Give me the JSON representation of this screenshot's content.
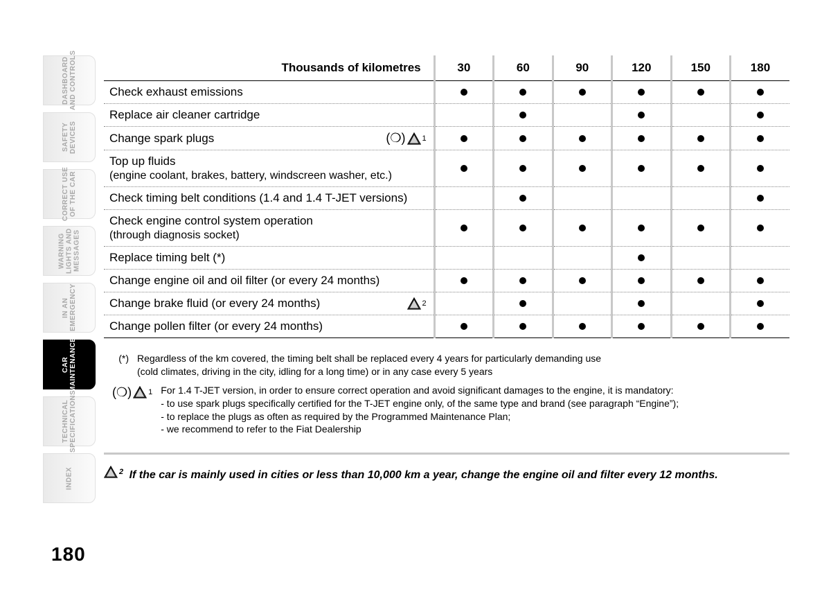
{
  "page_number": "180",
  "tabs": [
    {
      "label": "DASHBOARD\nAND CONTROLS",
      "active": false
    },
    {
      "label": "SAFETY\nDEVICES",
      "active": false
    },
    {
      "label": "CORRECT USE\nOF THE CAR",
      "active": false
    },
    {
      "label": "WARNING\nLIGHTS AND\nMESSAGES",
      "active": false
    },
    {
      "label": "IN AN\nEMERGENCY",
      "active": false
    },
    {
      "label": "CAR\nMAINTENANCE",
      "active": true
    },
    {
      "label": "TECHNICAL\nSPECIFICATIONS",
      "active": false
    },
    {
      "label": "INDEX",
      "active": false
    }
  ],
  "table": {
    "header_label": "Thousands of kilometres",
    "columns": [
      "30",
      "60",
      "90",
      "120",
      "150",
      "180"
    ],
    "rows": [
      {
        "desc": "Check exhaust emissions",
        "marks": [
          true,
          true,
          true,
          true,
          true,
          true
        ]
      },
      {
        "desc": "Replace air cleaner cartridge",
        "marks": [
          false,
          true,
          false,
          true,
          false,
          true
        ]
      },
      {
        "desc": "Change spark plugs",
        "annot": "ring_tri_1",
        "marks": [
          true,
          true,
          true,
          true,
          true,
          true
        ]
      },
      {
        "desc": "Top up fluids",
        "desc2": "(engine coolant, brakes, battery, windscreen washer, etc.)",
        "marks": [
          true,
          true,
          true,
          true,
          true,
          true
        ]
      },
      {
        "desc": "Check timing belt conditions (1.4 and 1.4 T-JET  versions)",
        "marks": [
          false,
          true,
          false,
          false,
          false,
          true
        ]
      },
      {
        "desc": "Check engine control system operation",
        "desc2": "(through diagnosis socket)",
        "marks": [
          true,
          true,
          true,
          true,
          true,
          true
        ]
      },
      {
        "desc": "Replace timing belt (*)",
        "marks": [
          false,
          false,
          false,
          true,
          false,
          false
        ]
      },
      {
        "desc": "Change engine oil and oil filter (or every 24 months)",
        "marks": [
          true,
          true,
          true,
          true,
          true,
          true
        ]
      },
      {
        "desc": "Change brake fluid (or every 24 months)",
        "annot": "tri_2",
        "marks": [
          false,
          true,
          false,
          true,
          false,
          true
        ]
      },
      {
        "desc": "Change pollen filter (or every 24 months)",
        "marks": [
          true,
          true,
          true,
          true,
          true,
          true
        ]
      }
    ]
  },
  "footnotes": {
    "star_label": "(*)",
    "star_text": "Regardless of the km covered, the timing belt shall be replaced every 4 years for particularly demanding use\n(cold climates, driving in the city, idling for a long time) or in any case every 5 years",
    "note1_lines": [
      "For 1.4 T-JET version, in order to ensure correct operation and avoid significant damages to the engine, it is mandatory:",
      "- to use spark plugs specifically certified for the T-JET engine only, of the same type and brand (see paragraph “Engine”);",
      "- to replace the plugs as often as required by the Programmed Maintenance Plan;",
      "- we recommend to refer to the Fiat Dealership"
    ],
    "emph_text": "If the car is mainly used in cities or less than 10,000 km a year, change the engine oil and filter every 12 months."
  },
  "colors": {
    "sep": "#c8c8c8",
    "tab_text": "#a9a9a9"
  }
}
